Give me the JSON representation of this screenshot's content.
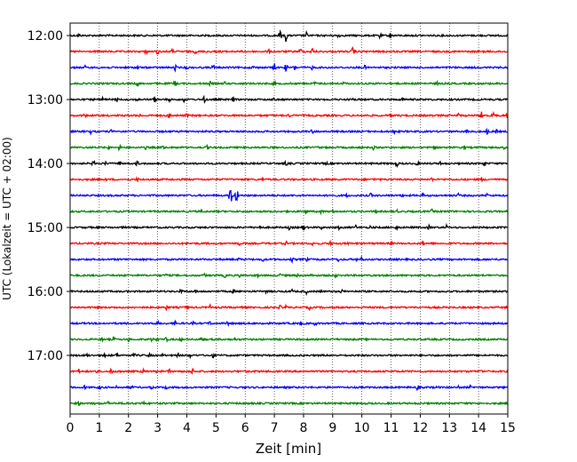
{
  "chart_data": {
    "type": "line",
    "xlabel": "Zeit  [min]",
    "ylabel": "UTC (Lokalzeit = UTC + 02:00)",
    "xlim": [
      0,
      15
    ],
    "xticks": [
      0,
      1,
      2,
      3,
      4,
      5,
      6,
      7,
      8,
      9,
      10,
      11,
      12,
      13,
      14,
      15
    ],
    "x_grid": true,
    "trace_interval_min": 15,
    "y_start": "12:00",
    "yticks": [
      "12:00",
      "13:00",
      "14:00",
      "15:00",
      "16:00",
      "17:00"
    ],
    "trace_colors": [
      "#000000",
      "#ff0000",
      "#0000ff",
      "#008000"
    ],
    "traces": [
      {
        "time": "12:00",
        "events": [
          [
            0.3,
            3
          ],
          [
            7.2,
            6
          ],
          [
            7.4,
            8
          ],
          [
            8.1,
            4
          ],
          [
            9.2,
            4
          ],
          [
            10.6,
            5
          ],
          [
            11.0,
            5
          ]
        ]
      },
      {
        "time": "12:15",
        "events": [
          [
            2.6,
            4
          ],
          [
            3.0,
            4
          ],
          [
            3.5,
            3
          ],
          [
            4.3,
            3
          ],
          [
            5.2,
            4
          ],
          [
            6.8,
            3
          ],
          [
            7.9,
            5
          ],
          [
            8.3,
            5
          ],
          [
            9.7,
            7
          ]
        ]
      },
      {
        "time": "12:30",
        "events": [
          [
            0.5,
            3
          ],
          [
            1.1,
            3
          ],
          [
            2.3,
            3
          ],
          [
            3.6,
            4
          ],
          [
            4.0,
            3
          ],
          [
            4.9,
            4
          ],
          [
            6.3,
            5
          ],
          [
            7.0,
            5
          ],
          [
            7.4,
            5
          ],
          [
            7.7,
            4
          ],
          [
            8.3,
            3
          ],
          [
            10.1,
            3
          ]
        ]
      },
      {
        "time": "12:45",
        "events": [
          [
            2.3,
            4
          ],
          [
            3.6,
            4
          ],
          [
            4.8,
            3
          ],
          [
            5.3,
            3
          ],
          [
            7.0,
            3
          ],
          [
            8.4,
            3
          ],
          [
            9.4,
            3
          ],
          [
            12.6,
            3
          ]
        ]
      },
      {
        "time": "13:00",
        "events": [
          [
            1.1,
            4
          ],
          [
            1.6,
            3
          ],
          [
            2.3,
            3
          ],
          [
            2.9,
            4
          ],
          [
            3.4,
            3
          ],
          [
            3.9,
            3
          ],
          [
            4.6,
            4
          ],
          [
            5.6,
            4
          ],
          [
            7.0,
            3
          ],
          [
            9.7,
            3
          ],
          [
            11.4,
            3
          ]
        ]
      },
      {
        "time": "13:15",
        "events": [
          [
            0.5,
            3
          ],
          [
            2.4,
            3
          ],
          [
            3.4,
            4
          ],
          [
            4.0,
            3
          ],
          [
            7.5,
            3
          ],
          [
            11.0,
            3
          ],
          [
            13.3,
            3
          ],
          [
            14.1,
            6
          ],
          [
            14.5,
            5
          ],
          [
            15.0,
            5
          ]
        ]
      },
      {
        "time": "13:30",
        "events": [
          [
            0.7,
            3
          ],
          [
            1.4,
            3
          ],
          [
            1.7,
            3
          ],
          [
            8.3,
            3
          ],
          [
            11.1,
            3
          ],
          [
            13.6,
            3
          ],
          [
            14.3,
            4
          ],
          [
            14.6,
            3
          ]
        ]
      },
      {
        "time": "13:45",
        "events": [
          [
            1.3,
            3
          ],
          [
            1.7,
            4
          ],
          [
            2.6,
            3
          ],
          [
            3.2,
            3
          ],
          [
            4.7,
            3
          ],
          [
            6.1,
            3
          ],
          [
            8.5,
            3
          ],
          [
            10.4,
            3
          ],
          [
            12.5,
            3
          ],
          [
            13.5,
            3
          ],
          [
            14.9,
            3
          ]
        ]
      },
      {
        "time": "14:00",
        "events": [
          [
            0.8,
            4
          ],
          [
            1.2,
            3
          ],
          [
            1.7,
            3
          ],
          [
            2.3,
            4
          ],
          [
            7.4,
            4
          ],
          [
            8.8,
            3
          ],
          [
            11.2,
            4
          ],
          [
            11.9,
            3
          ],
          [
            12.7,
            3
          ],
          [
            14.2,
            4
          ]
        ]
      },
      {
        "time": "14:15",
        "events": [
          [
            1.2,
            3
          ],
          [
            2.3,
            3
          ],
          [
            6.6,
            3
          ],
          [
            10.4,
            3
          ],
          [
            12.4,
            3
          ],
          [
            14.1,
            3
          ]
        ]
      },
      {
        "time": "14:30",
        "events": [
          [
            5.5,
            14
          ],
          [
            5.7,
            12
          ],
          [
            9.5,
            3
          ],
          [
            10.3,
            3
          ],
          [
            11.4,
            3
          ],
          [
            12.1,
            3
          ],
          [
            13.3,
            3
          ],
          [
            14.3,
            3
          ]
        ]
      },
      {
        "time": "14:45",
        "events": [
          [
            4.5,
            3
          ],
          [
            8.1,
            3
          ],
          [
            8.6,
            4
          ],
          [
            9.0,
            3
          ],
          [
            10.5,
            3
          ],
          [
            11.2,
            3
          ],
          [
            12.4,
            3
          ],
          [
            13.0,
            3
          ]
        ]
      },
      {
        "time": "15:00",
        "events": [
          [
            6.5,
            3
          ],
          [
            7.5,
            3
          ],
          [
            8.0,
            4
          ],
          [
            8.6,
            3
          ],
          [
            9.2,
            3
          ],
          [
            9.8,
            3
          ],
          [
            10.3,
            3
          ],
          [
            11.2,
            3
          ],
          [
            12.3,
            3
          ],
          [
            12.9,
            3
          ]
        ]
      },
      {
        "time": "15:15",
        "events": [
          [
            5.8,
            3
          ],
          [
            7.4,
            3
          ],
          [
            8.3,
            3
          ],
          [
            8.9,
            3
          ],
          [
            9.5,
            3
          ],
          [
            11.0,
            3
          ],
          [
            12.1,
            3
          ]
        ]
      },
      {
        "time": "15:30",
        "events": [
          [
            5.8,
            3
          ],
          [
            6.6,
            3
          ],
          [
            7.6,
            4
          ],
          [
            8.1,
            3
          ],
          [
            8.6,
            3
          ],
          [
            9.2,
            3
          ],
          [
            9.8,
            3
          ],
          [
            10.0,
            3
          ]
        ]
      },
      {
        "time": "15:45",
        "events": [
          [
            3.3,
            3
          ],
          [
            4.6,
            3
          ],
          [
            5.3,
            3
          ],
          [
            5.8,
            3
          ],
          [
            6.4,
            3
          ],
          [
            7.2,
            3
          ],
          [
            7.8,
            3
          ],
          [
            8.3,
            3
          ],
          [
            9.1,
            3
          ]
        ]
      },
      {
        "time": "16:00",
        "events": [
          [
            3.8,
            3
          ],
          [
            4.3,
            3
          ],
          [
            5.6,
            3
          ],
          [
            6.7,
            3
          ],
          [
            7.6,
            3
          ],
          [
            8.1,
            3
          ],
          [
            8.6,
            3
          ],
          [
            9.3,
            3
          ]
        ]
      },
      {
        "time": "16:15",
        "events": [
          [
            3.3,
            3
          ],
          [
            4.0,
            3
          ],
          [
            4.8,
            3
          ],
          [
            5.7,
            3
          ],
          [
            7.2,
            3
          ],
          [
            7.4,
            3
          ],
          [
            8.2,
            3
          ]
        ]
      },
      {
        "time": "16:30",
        "events": [
          [
            2.8,
            3
          ],
          [
            3.0,
            3
          ],
          [
            3.6,
            3
          ],
          [
            4.2,
            3
          ],
          [
            4.8,
            3
          ],
          [
            5.4,
            3
          ],
          [
            6.6,
            3
          ],
          [
            7.9,
            3
          ],
          [
            8.4,
            3
          ]
        ]
      },
      {
        "time": "16:45",
        "events": [
          [
            1.1,
            3
          ],
          [
            1.5,
            3
          ],
          [
            2.0,
            3
          ],
          [
            2.8,
            3
          ],
          [
            3.0,
            3
          ],
          [
            3.3,
            3
          ],
          [
            3.8,
            3
          ],
          [
            4.5,
            3
          ],
          [
            5.6,
            4
          ]
        ]
      },
      {
        "time": "17:00",
        "events": [
          [
            0.6,
            3
          ],
          [
            1.2,
            3
          ],
          [
            1.6,
            3
          ],
          [
            2.2,
            3
          ],
          [
            2.7,
            3
          ],
          [
            3.2,
            3
          ],
          [
            3.7,
            3
          ],
          [
            4.1,
            3
          ],
          [
            4.7,
            3
          ],
          [
            4.9,
            3
          ]
        ]
      },
      {
        "time": "17:15",
        "events": [
          [
            0.3,
            3
          ],
          [
            0.9,
            3
          ],
          [
            1.4,
            4
          ],
          [
            1.6,
            3
          ],
          [
            2.5,
            3
          ],
          [
            3.0,
            3
          ],
          [
            3.4,
            3
          ],
          [
            4.2,
            4
          ],
          [
            14.1,
            3
          ]
        ]
      },
      {
        "time": "17:30",
        "events": [
          [
            0.5,
            3
          ],
          [
            1.0,
            3
          ],
          [
            1.6,
            3
          ],
          [
            2.1,
            3
          ],
          [
            2.8,
            3
          ],
          [
            3.3,
            3
          ],
          [
            11.9,
            4
          ],
          [
            12.6,
            3
          ],
          [
            13.3,
            3
          ],
          [
            13.7,
            3
          ]
        ]
      },
      {
        "time": "17:45",
        "events": [
          [
            0.3,
            3
          ],
          [
            0.8,
            3
          ],
          [
            1.3,
            3
          ],
          [
            1.9,
            3
          ],
          [
            2.5,
            3
          ]
        ]
      }
    ]
  }
}
